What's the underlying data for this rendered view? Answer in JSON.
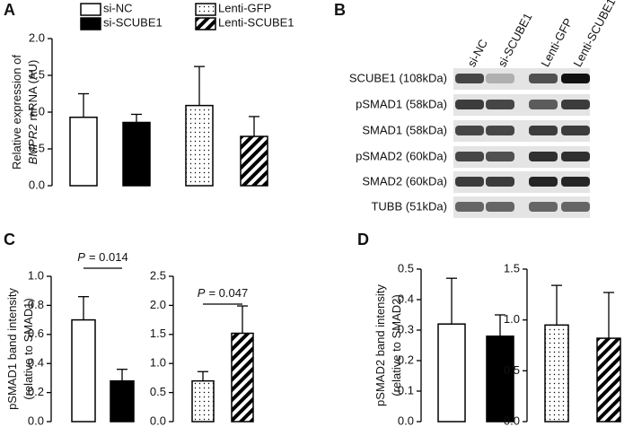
{
  "panels": [
    "A",
    "B",
    "C",
    "D"
  ],
  "blot": {
    "lanes": [
      "si-NC",
      "si-SCUBE1",
      "Lenti-GFP",
      "Lenti-SCUBE1"
    ],
    "rows": [
      "SCUBE1 (108kDa)",
      "pSMAD1 (58kDa)",
      "SMAD1 (58kDa)",
      "pSMAD2 (60kDa)",
      "SMAD2 (60kDa)",
      "TUBB (51kDa)"
    ]
  },
  "chart_data": [
    {
      "type": "bar",
      "ylabel": [
        [
          {
            "text": "Relative expression of"
          }
        ],
        [
          {
            "text": "BMPR2",
            "italic": true
          },
          {
            "text": "mRNA (AU)"
          }
        ]
      ],
      "legend": [
        {
          "name": "si-NC",
          "fill": "white"
        },
        {
          "name": "si-SCUBE1",
          "fill": "black"
        },
        {
          "name": "Lenti-GFP",
          "fill": "dots"
        },
        {
          "name": "Lenti-SCUBE1",
          "fill": "hatch"
        }
      ],
      "categories": [
        null,
        null,
        null,
        null
      ],
      "values": [
        0.93,
        0.86,
        1.09,
        0.67
      ],
      "errors": [
        0.32,
        0.11,
        0.53,
        0.27
      ],
      "fills": [
        "white",
        "black",
        "dots",
        "hatch"
      ],
      "ylim": [
        0,
        2
      ],
      "yticks": [
        {
          "value": 0,
          "label": "0.0"
        },
        0.5,
        {
          "value": 1,
          "label": "1.0"
        },
        1.5,
        {
          "value": 2,
          "label": "2.0"
        }
      ]
    },
    {
      "type": "bar",
      "ylabel": [
        [
          {
            "text": "pSMAD1 band intensity"
          }
        ],
        [
          {
            "text": "(relative to SMAD1)"
          }
        ]
      ],
      "annotation": [
        {
          "text": "P",
          "italic": true
        },
        {
          "text": "= 0.014"
        }
      ],
      "categories": [
        null,
        null
      ],
      "values": [
        0.7,
        0.28
      ],
      "errors": [
        0.16,
        0.08
      ],
      "fills": [
        "white",
        "black"
      ],
      "ylim": [
        0,
        1
      ],
      "yticks": [
        {
          "value": 0,
          "label": "0.0"
        },
        0.2,
        0.4,
        0.6,
        0.8,
        {
          "value": 1,
          "label": "1.0"
        }
      ]
    },
    {
      "type": "bar",
      "annotation": [
        {
          "text": "P",
          "italic": true
        },
        {
          "text": "= 0.047"
        }
      ],
      "categories": [
        null,
        null
      ],
      "values": [
        0.7,
        1.52
      ],
      "errors": [
        0.16,
        0.47
      ],
      "fills": [
        "dots",
        "hatch"
      ],
      "ylim": [
        0,
        2.5
      ],
      "yticks": [
        {
          "value": 0,
          "label": "0.0"
        },
        0.5,
        {
          "value": 1,
          "label": "1.0"
        },
        1.5,
        {
          "value": 2,
          "label": "2.0"
        },
        2.5
      ]
    },
    {
      "type": "bar",
      "ylabel": [
        [
          {
            "text": "pSMAD2 band intensity"
          }
        ],
        [
          {
            "text": "(relative to SMAD2)"
          }
        ]
      ],
      "categories": [
        null,
        null
      ],
      "values": [
        0.32,
        0.28
      ],
      "errors": [
        0.15,
        0.07
      ],
      "fills": [
        "white",
        "black"
      ],
      "ylim": [
        0,
        0.5
      ],
      "yticks": [
        {
          "value": 0,
          "label": "0.0"
        },
        0.1,
        0.2,
        0.3,
        0.4,
        0.5
      ]
    },
    {
      "type": "bar",
      "categories": [
        null,
        null
      ],
      "values": [
        0.95,
        0.82
      ],
      "errors": [
        0.39,
        0.45
      ],
      "fills": [
        "dots",
        "hatch"
      ],
      "ylim": [
        0,
        1.5
      ],
      "yticks": [
        {
          "value": 0,
          "label": "0.0"
        },
        0.5,
        {
          "value": 1,
          "label": "1.0"
        },
        1.5
      ]
    }
  ]
}
